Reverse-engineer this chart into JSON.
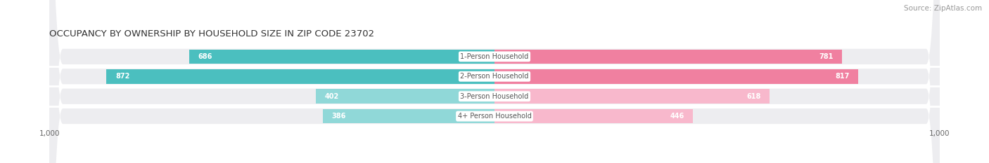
{
  "title": "OCCUPANCY BY OWNERSHIP BY HOUSEHOLD SIZE IN ZIP CODE 23702",
  "source": "Source: ZipAtlas.com",
  "categories": [
    "1-Person Household",
    "2-Person Household",
    "3-Person Household",
    "4+ Person Household"
  ],
  "owner_values": [
    686,
    872,
    402,
    386
  ],
  "renter_values": [
    781,
    817,
    618,
    446
  ],
  "owner_color": "#4BBFBF",
  "renter_color": "#F080A0",
  "owner_light_color": "#90D8D8",
  "renter_light_color": "#F8B8CC",
  "bar_bg_color": "#EDEDF0",
  "axis_max": 1000,
  "title_fontsize": 9.5,
  "source_fontsize": 7.5,
  "label_fontsize": 7,
  "tick_fontsize": 7.5,
  "legend_fontsize": 7.5,
  "background_color": "#FFFFFF"
}
